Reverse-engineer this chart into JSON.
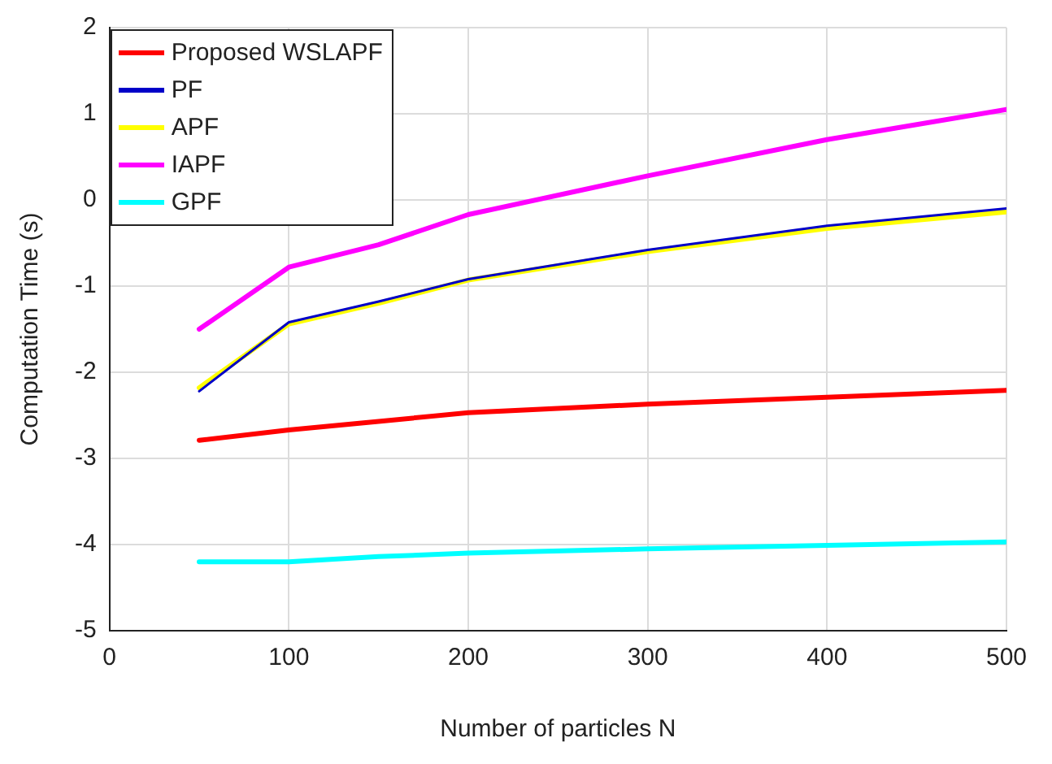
{
  "chart_data": {
    "type": "line",
    "xlabel": "Number of particles N",
    "ylabel": "Computation Time (s)",
    "x": [
      50,
      100,
      150,
      200,
      300,
      400,
      500
    ],
    "xlim": [
      0,
      500
    ],
    "xticks": [
      0,
      100,
      200,
      300,
      400,
      500
    ],
    "ylim": [
      -5,
      2
    ],
    "yticks": [
      -5,
      -4,
      -3,
      -2,
      -1,
      0,
      1,
      2
    ],
    "grid": true,
    "legend": "top left",
    "marker": "none",
    "line_style": "solid",
    "series": [
      {
        "name": "Proposed WSLAPF",
        "color": "#ff0000",
        "values": [
          -2.79,
          -2.67,
          -2.57,
          -2.47,
          -2.37,
          -2.29,
          -2.21
        ]
      },
      {
        "name": "PF",
        "color": "#0000c8",
        "values": [
          -2.22,
          -1.42,
          -1.18,
          -0.92,
          -0.58,
          -0.3,
          -0.1
        ]
      },
      {
        "name": "APF",
        "color": "#ffff00",
        "values": [
          -2.18,
          -1.44,
          -1.2,
          -0.93,
          -0.6,
          -0.33,
          -0.14
        ]
      },
      {
        "name": "IAPF",
        "color": "#ff00ff",
        "values": [
          -1.5,
          -0.78,
          -0.52,
          -0.17,
          0.28,
          0.7,
          1.05
        ]
      },
      {
        "name": "GPF",
        "color": "#00ffff",
        "values": [
          -4.2,
          -4.2,
          -4.14,
          -4.1,
          -4.05,
          -4.01,
          -3.97
        ]
      }
    ]
  }
}
